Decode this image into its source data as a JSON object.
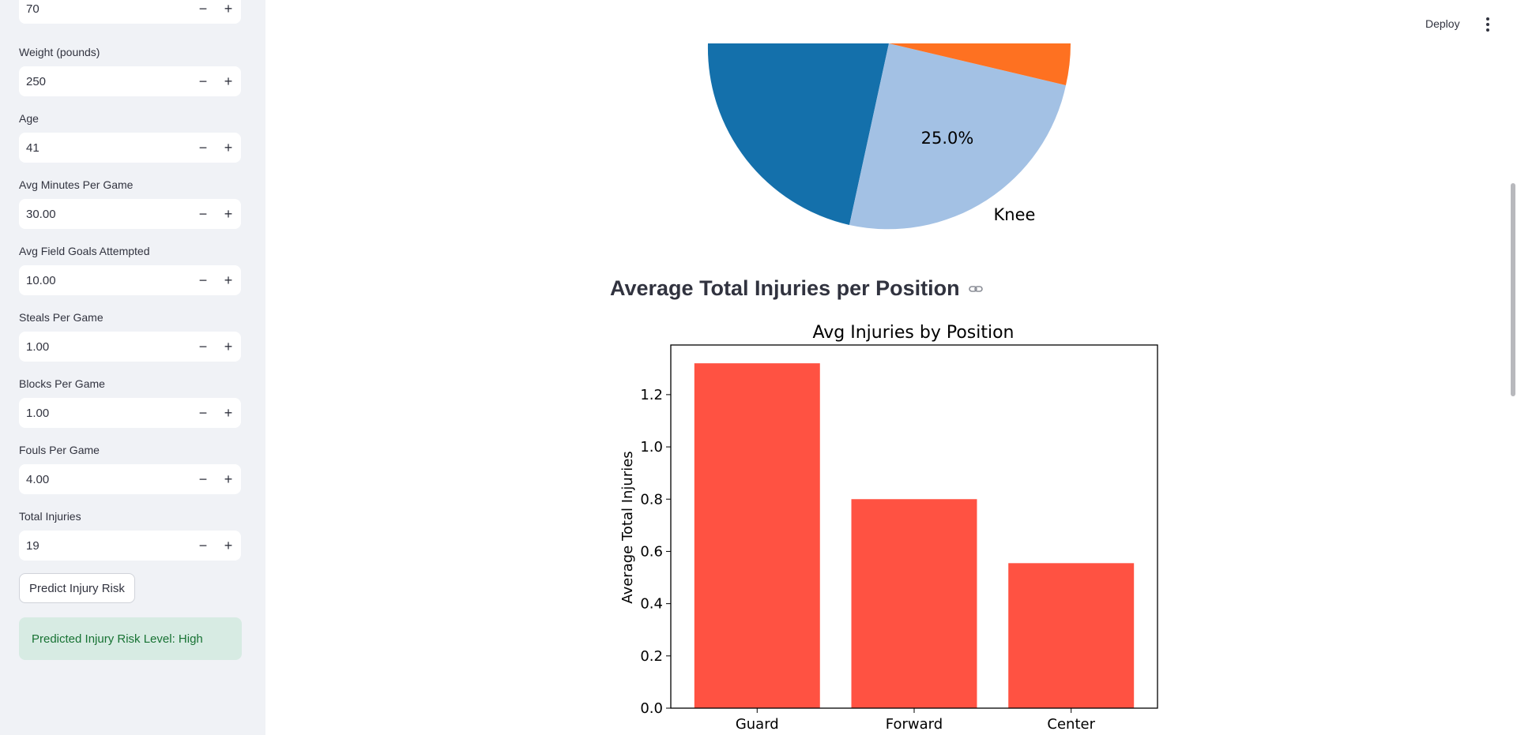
{
  "sidebar": {
    "fields": [
      {
        "label": "",
        "value": "70"
      },
      {
        "label": "Weight (pounds)",
        "value": "250"
      },
      {
        "label": "Age",
        "value": "41"
      },
      {
        "label": "Avg Minutes Per Game",
        "value": "30.00"
      },
      {
        "label": "Avg Field Goals Attempted",
        "value": "10.00"
      },
      {
        "label": "Steals Per Game",
        "value": "1.00"
      },
      {
        "label": "Blocks Per Game",
        "value": "1.00"
      },
      {
        "label": "Fouls Per Game",
        "value": "4.00"
      },
      {
        "label": "Total Injuries",
        "value": "19"
      }
    ],
    "minus_symbol": "−",
    "plus_symbol": "+",
    "predict_button": "Predict Injury Risk",
    "result_text": "Predicted Injury Risk Level: High"
  },
  "header": {
    "deploy_label": "Deploy",
    "menu_icon": "vertical-ellipsis-icon"
  },
  "pie_partial": {
    "visible_labels": {
      "slice_pct": "25.0%",
      "slice_name": "Knee"
    },
    "colors": {
      "dark_blue": "#1470ab",
      "light_blue": "#a3c1e4",
      "orange": "#fe7121"
    }
  },
  "section": {
    "heading": "Average Total Injuries per Position",
    "link_icon": "link-icon"
  },
  "chart_data": {
    "type": "bar",
    "title": "Avg Injuries by Position",
    "xlabel": "",
    "ylabel": "Average Total Injuries",
    "categories": [
      "Guard",
      "Forward",
      "Center"
    ],
    "values": [
      1.32,
      0.8,
      0.555
    ],
    "ylim": [
      0,
      1.39
    ],
    "yticks": [
      "0.0",
      "0.2",
      "0.4",
      "0.6",
      "0.8",
      "1.0",
      "1.2"
    ],
    "bar_color": "#ff5242",
    "grid": false
  }
}
